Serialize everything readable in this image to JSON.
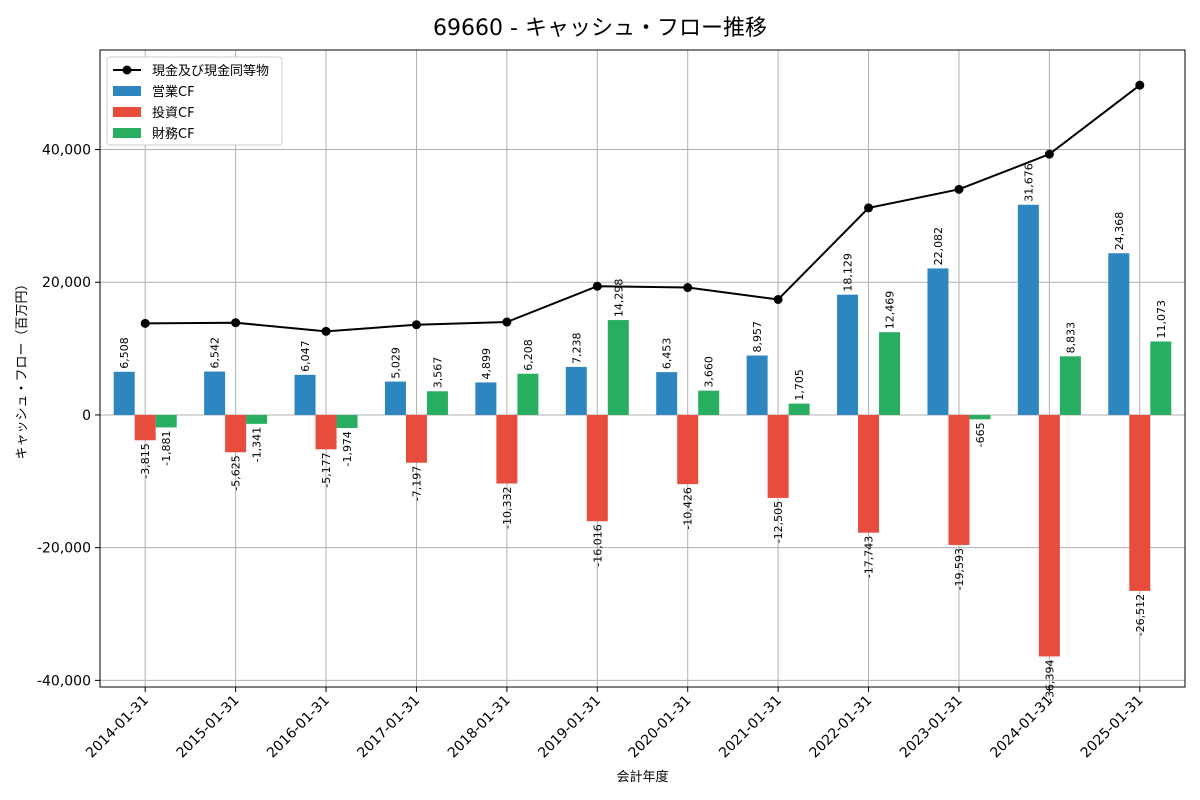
{
  "chart_data": {
    "type": "bar",
    "title": "69660 - キャッシュ・フロー推移",
    "xlabel": "会計年度",
    "ylabel": "キャッシュ・フロー（百万円）",
    "ylim": [
      -41000,
      55000
    ],
    "yticks": [
      -40000,
      -20000,
      0,
      20000,
      40000
    ],
    "ytick_labels": [
      "-40,000",
      "-20,000",
      "0",
      "20,000",
      "40,000"
    ],
    "grid": true,
    "legend_position": "top-left",
    "categories": [
      "2014-01-31",
      "2015-01-31",
      "2016-01-31",
      "2017-01-31",
      "2018-01-31",
      "2019-01-31",
      "2020-01-31",
      "2021-01-31",
      "2022-01-31",
      "2023-01-31",
      "2024-01-31",
      "2025-01-31"
    ],
    "series": [
      {
        "name": "営業CF",
        "kind": "bar",
        "color": "#2e86c1",
        "values": [
          6508,
          6542,
          6047,
          5029,
          4899,
          7238,
          6453,
          8957,
          18129,
          22082,
          31676,
          24368
        ],
        "labels": [
          "6,508",
          "6,542",
          "6,047",
          "5,029",
          "4,899",
          "7,238",
          "6,453",
          "8,957",
          "18,129",
          "22,082",
          "31,676",
          "24,368"
        ]
      },
      {
        "name": "投資CF",
        "kind": "bar",
        "color": "#e74c3c",
        "values": [
          -3815,
          -5625,
          -5177,
          -7197,
          -10332,
          -16016,
          -10426,
          -12505,
          -17743,
          -19593,
          -36394,
          -26512
        ],
        "labels": [
          "-3,815",
          "-5,625",
          "-5,177",
          "-7,197",
          "-10,332",
          "-16,016",
          "-10,426",
          "-12,505",
          "-17,743",
          "-19,593",
          "-36,394",
          "-26,512"
        ]
      },
      {
        "name": "財務CF",
        "kind": "bar",
        "color": "#27ae60",
        "values": [
          -1881,
          -1341,
          -1974,
          3567,
          6208,
          14298,
          3660,
          1705,
          12469,
          -665,
          8833,
          11073
        ],
        "labels": [
          "-1,881",
          "-1,341",
          "-1,974",
          "3,567",
          "6,208",
          "14,298",
          "3,660",
          "1,705",
          "12,469",
          "-665",
          "8,833",
          "11,073"
        ]
      },
      {
        "name": "現金及び現金同等物",
        "kind": "line",
        "color": "#000000",
        "values": [
          13800,
          13900,
          12600,
          13600,
          14000,
          19400,
          19200,
          17400,
          31200,
          34000,
          39300,
          49700
        ]
      }
    ]
  }
}
